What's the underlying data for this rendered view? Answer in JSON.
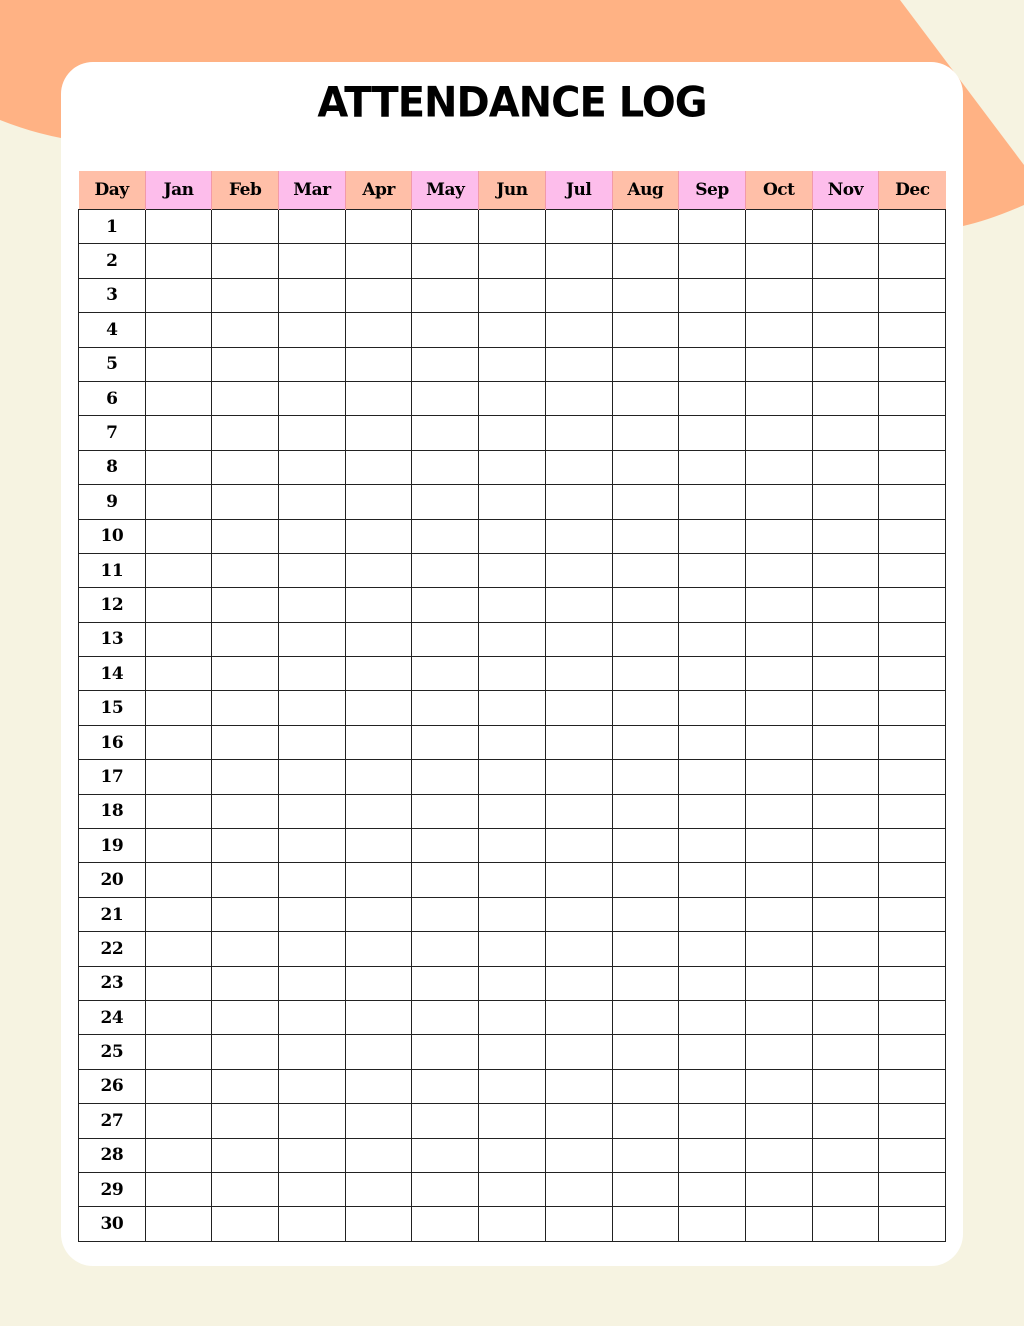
{
  "title": "ATTENDANCE LOG",
  "colors": {
    "background": "#F6F3E1",
    "accent_orange": "#FFB284",
    "header_salmon": "#FFBFA8",
    "header_pink": "#FDBDEB"
  },
  "table": {
    "headers": [
      "Day",
      "Jan",
      "Feb",
      "Mar",
      "Apr",
      "May",
      "Jun",
      "Jul",
      "Aug",
      "Sep",
      "Oct",
      "Nov",
      "Dec"
    ],
    "days": [
      "1",
      "2",
      "3",
      "4",
      "5",
      "6",
      "7",
      "8",
      "9",
      "10",
      "11",
      "12",
      "13",
      "14",
      "15",
      "16",
      "17",
      "18",
      "19",
      "20",
      "21",
      "22",
      "23",
      "24",
      "25",
      "26",
      "27",
      "28",
      "29",
      "30"
    ]
  }
}
